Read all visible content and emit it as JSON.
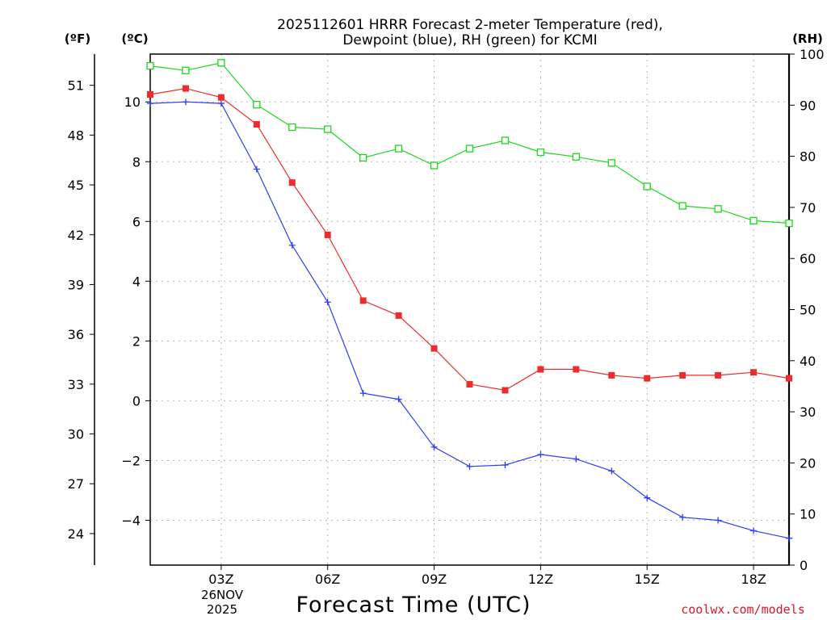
{
  "chart_data": {
    "type": "line",
    "title_line1": "2025112601 HRRR Forecast 2-meter Temperature (red),",
    "title_line2": "Dewpoint (blue), RH (green) for KCMI",
    "xlabel": "Forecast Time (UTC)",
    "date_label_line1": "26NOV",
    "date_label_line2": "2025",
    "x_hours": [
      1,
      2,
      3,
      4,
      5,
      6,
      7,
      8,
      9,
      10,
      11,
      12,
      13,
      14,
      15,
      16,
      17,
      18,
      19
    ],
    "x_range": [
      1,
      19
    ],
    "x_ticks": [
      {
        "hour": 3,
        "label": "03Z"
      },
      {
        "hour": 6,
        "label": "06Z"
      },
      {
        "hour": 9,
        "label": "09Z"
      },
      {
        "hour": 12,
        "label": "12Z"
      },
      {
        "hour": 15,
        "label": "15Z"
      },
      {
        "hour": 18,
        "label": "18Z"
      }
    ],
    "y_left": {
      "unit_label": "(ºC)",
      "range": [
        -5.5,
        11.6
      ],
      "ticks": [
        10,
        8,
        6,
        4,
        2,
        0,
        -2,
        -4
      ],
      "tick_labels": [
        "10",
        "8",
        "6",
        "4",
        "2",
        "0",
        "−2",
        "−4"
      ]
    },
    "y_far_left": {
      "unit_label": "(ºF)",
      "ticks": [
        51,
        48,
        45,
        42,
        39,
        36,
        33,
        30,
        27,
        24
      ]
    },
    "y_right": {
      "unit_label": "(RH)",
      "range": [
        0,
        100
      ],
      "ticks": [
        100,
        90,
        80,
        70,
        60,
        50,
        40,
        30,
        20,
        10,
        0
      ]
    },
    "series": [
      {
        "name": "Temperature",
        "unit": "C",
        "color": "#ef2b2b",
        "marker": "filled-square",
        "values": [
          10.25,
          10.45,
          10.15,
          9.25,
          7.3,
          5.55,
          3.35,
          2.85,
          1.75,
          0.55,
          0.35,
          1.05,
          1.05,
          0.85,
          0.75,
          0.85,
          0.85,
          0.95,
          0.75
        ]
      },
      {
        "name": "Dewpoint",
        "unit": "C",
        "color": "#2b3fef",
        "marker": "plus",
        "values": [
          9.95,
          10.0,
          9.95,
          7.75,
          5.2,
          3.3,
          0.25,
          0.05,
          -1.55,
          -2.2,
          -2.15,
          -1.8,
          -1.95,
          -2.35,
          -3.25,
          -3.9,
          -4.0,
          -4.35,
          -4.6
        ]
      },
      {
        "name": "RH",
        "unit": "%",
        "color": "#1ed61e",
        "marker": "open-square",
        "values": [
          97.7,
          96.8,
          98.3,
          90.1,
          85.7,
          85.3,
          79.7,
          81.5,
          78.2,
          81.5,
          83.1,
          80.8,
          79.9,
          78.7,
          74.1,
          70.3,
          69.7,
          67.4,
          66.9
        ]
      }
    ]
  },
  "watermark": "coolwx.com/models"
}
